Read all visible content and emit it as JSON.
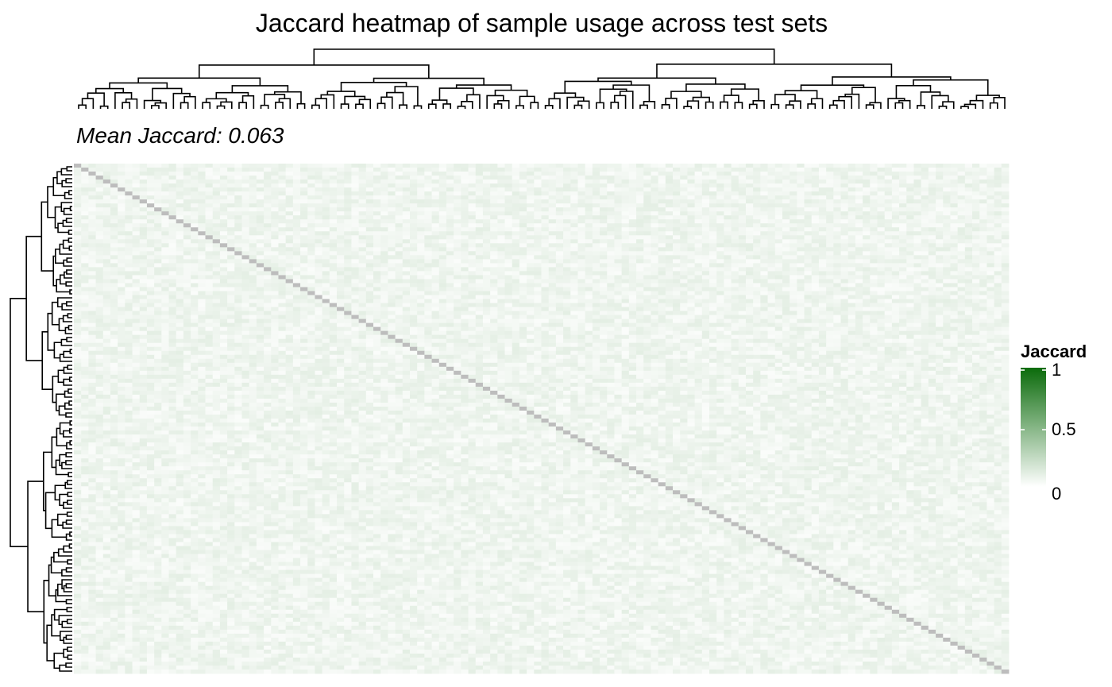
{
  "chart_data": {
    "type": "heatmap",
    "title": "Jaccard heatmap of sample usage across test sets",
    "subtitle": "Mean Jaccard: 0.063",
    "n_rows": 128,
    "n_cols": 128,
    "value_range": [
      0,
      1
    ],
    "mean_value": 0.063,
    "diagonal_value": 0.25,
    "off_diagonal_range": [
      0.02,
      0.11
    ],
    "color_scale": {
      "low": "#ffffff",
      "high": "#0b6b0b"
    },
    "diagonal_color": "#bdbdbd",
    "row_dendrogram": "left",
    "column_dendrogram": "top",
    "legend": {
      "title": "Jaccard",
      "ticks": [
        {
          "label": "1",
          "value": 1
        },
        {
          "label": "0.5",
          "value": 0.5
        },
        {
          "label": "0",
          "value": 0
        }
      ]
    }
  }
}
